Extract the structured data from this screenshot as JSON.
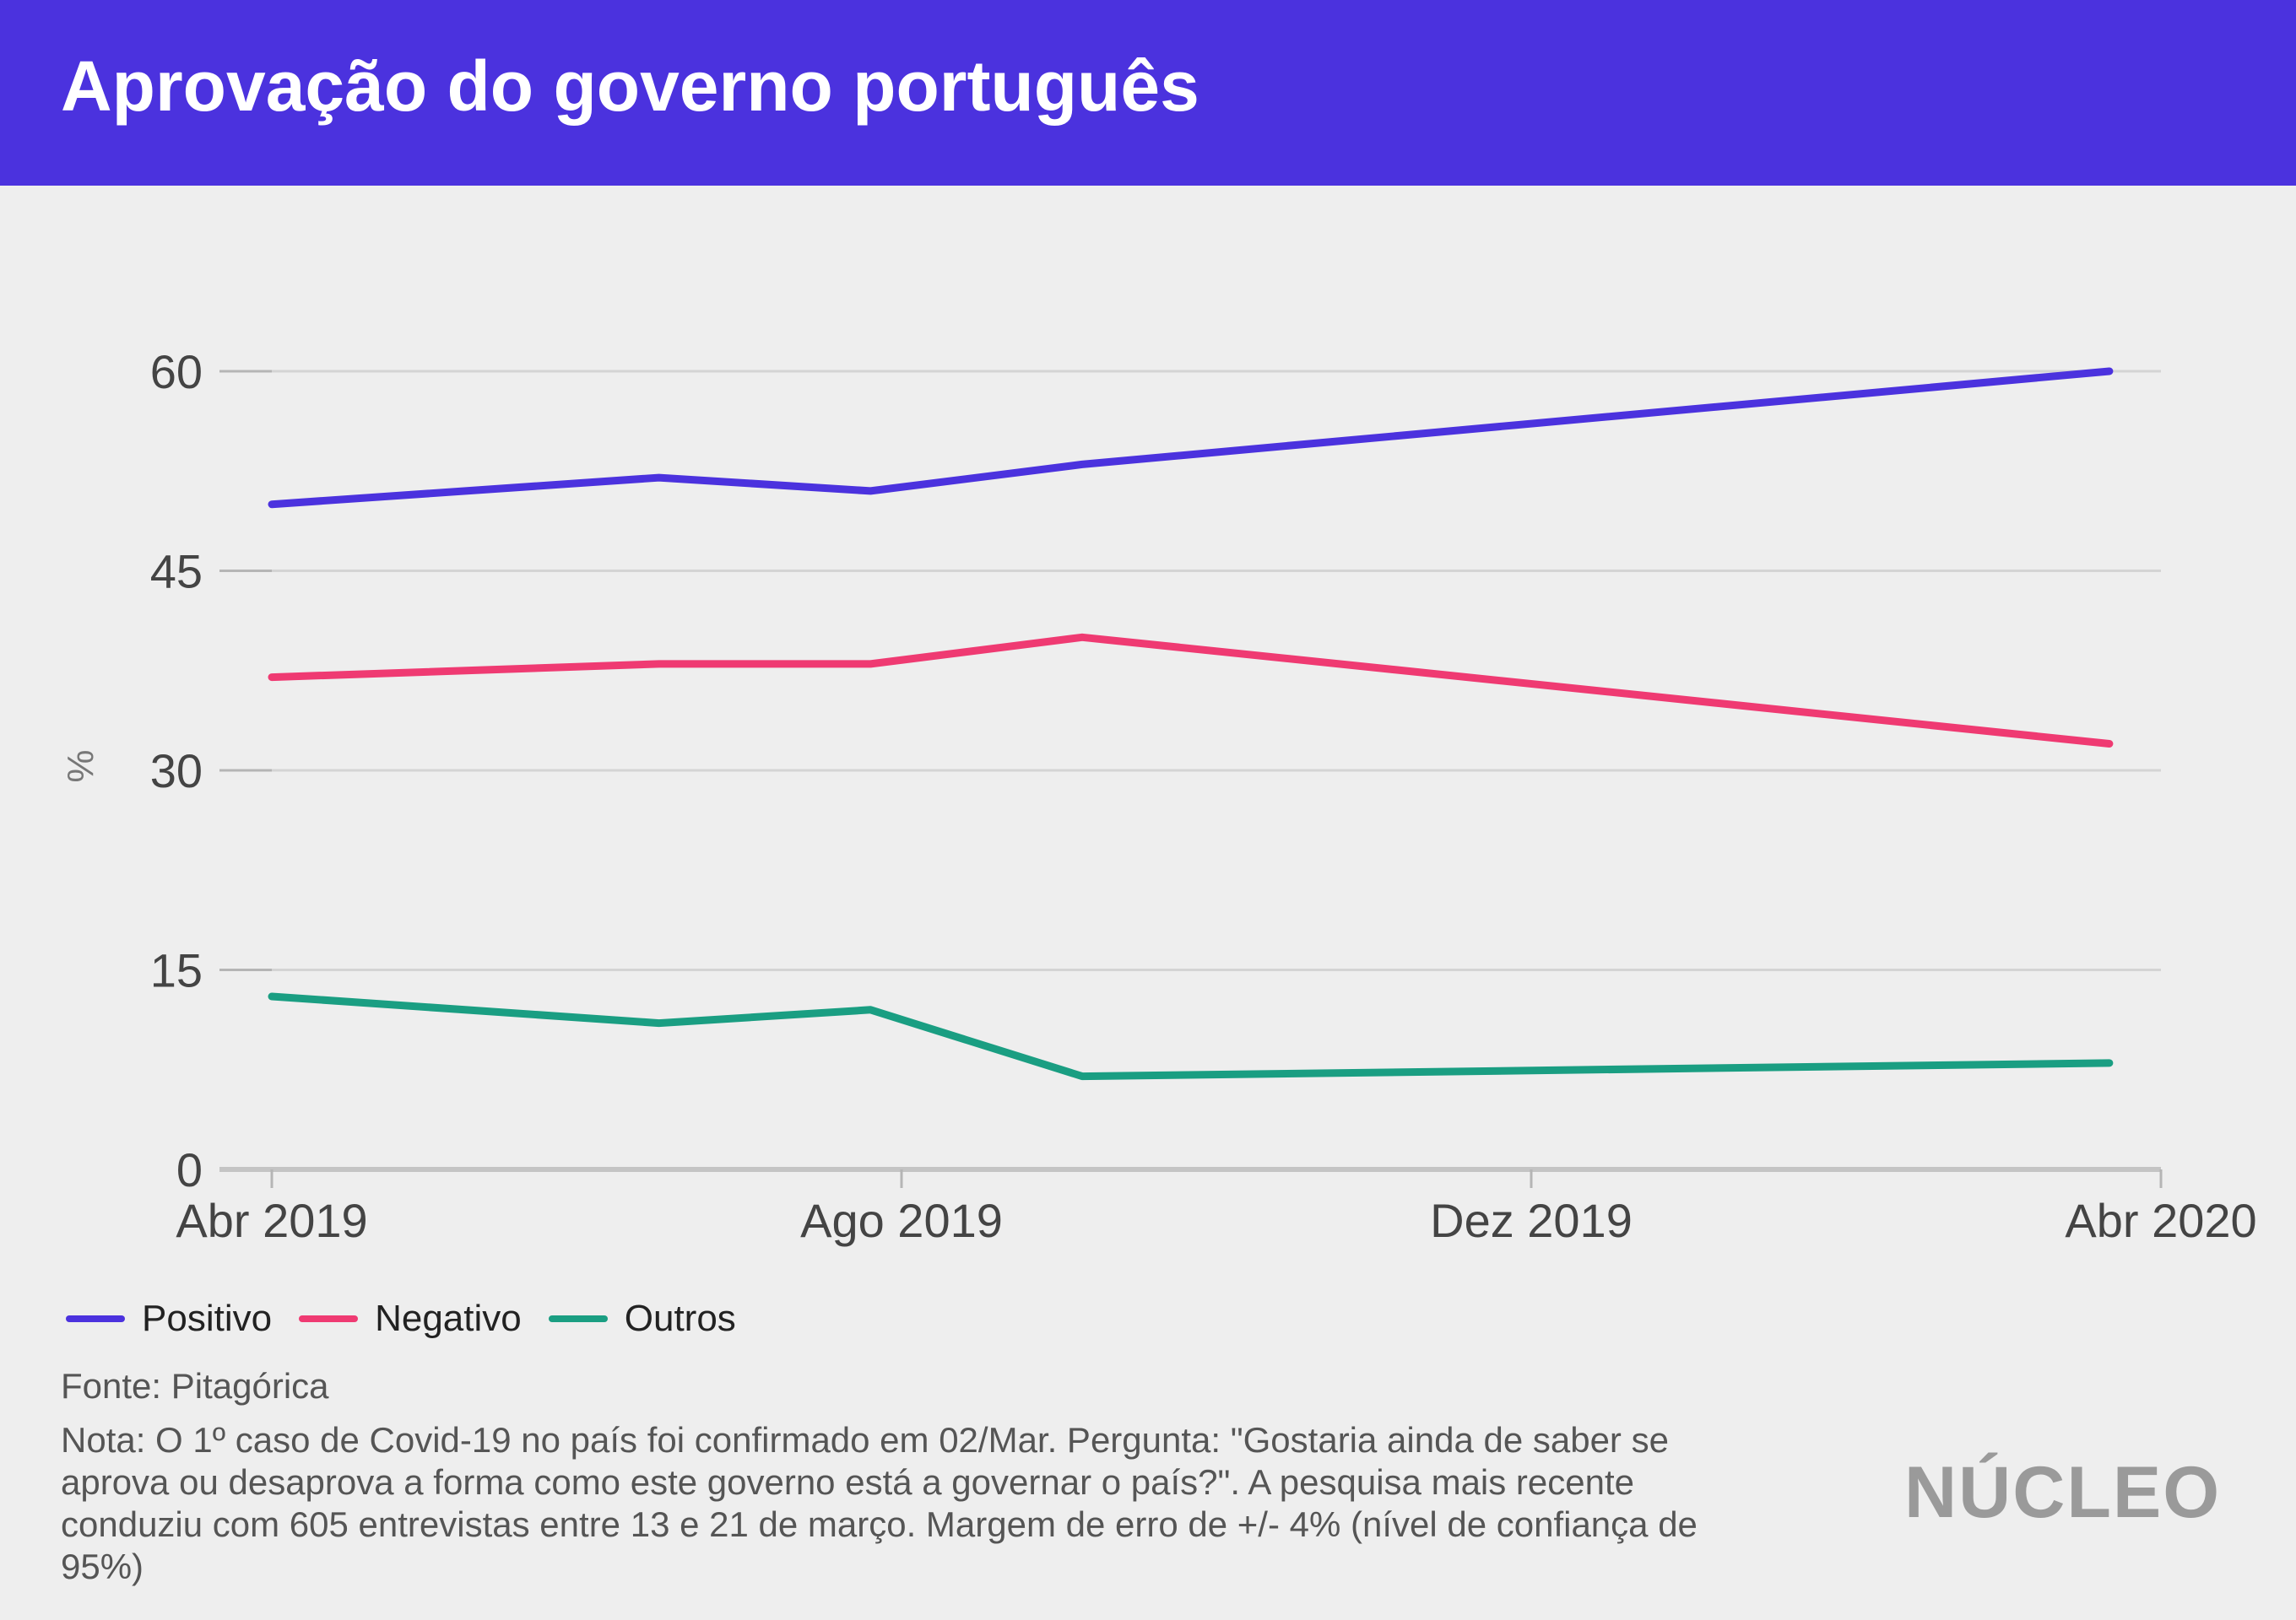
{
  "header": {
    "title": "Aprovação do governo português"
  },
  "chart_data": {
    "type": "line",
    "title": "Aprovação do governo português",
    "ylabel": "%",
    "xlabel": "",
    "ylim": [
      0,
      60
    ],
    "yticks": [
      0,
      15,
      30,
      45,
      60
    ],
    "xticks": [
      "Abr 2019",
      "Ago 2019",
      "Dez 2019",
      "Abr 2020"
    ],
    "x": [
      "2019-04-01",
      "2019-06-15",
      "2019-07-26",
      "2019-09-05",
      "2020-03-22"
    ],
    "series": [
      {
        "name": "Positivo",
        "color": "#4b32de",
        "values": [
          50,
          52,
          51,
          53,
          60
        ]
      },
      {
        "name": "Negativo",
        "color": "#ef3a72",
        "values": [
          37,
          38,
          38,
          40,
          32
        ]
      },
      {
        "name": "Outros",
        "color": "#1a9e82",
        "values": [
          13,
          11,
          12,
          7,
          8
        ]
      }
    ],
    "grid": true,
    "legend_position": "bottom-left"
  },
  "footer": {
    "source": "Fonte: Pitagórica",
    "note": "Nota: O 1º caso de Covid-19 no país foi confirmado em 02/Mar. Pergunta: \"Gostaria ainda de saber se aprova ou desaprova a forma como este governo está a governar o país?\". A pesquisa mais recente conduziu com 605 entrevistas entre 13 e 21 de março. Margem de erro de +/- 4% (nível de confiança de 95%)",
    "logo": "NÚCLEO"
  }
}
